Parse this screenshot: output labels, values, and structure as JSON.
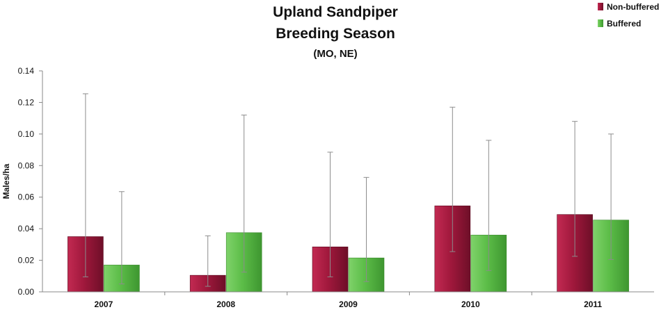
{
  "chart_data": {
    "type": "bar",
    "title_lines": [
      "Upland Sandpiper",
      "Breeding Season",
      "(MO, NE)"
    ],
    "xlabel": "",
    "ylabel": "Males/ha",
    "categories": [
      "2007",
      "2008",
      "2009",
      "2010",
      "2011"
    ],
    "ylim": [
      0,
      0.14
    ],
    "yticks": [
      "0.00",
      "0.02",
      "0.04",
      "0.06",
      "0.08",
      "0.10",
      "0.12",
      "0.14"
    ],
    "legend_position": "top-right",
    "grid": false,
    "error_bars": true,
    "series": [
      {
        "name": "Non-buffered",
        "color": "#a0183c",
        "values": [
          0.035,
          0.0105,
          0.0285,
          0.0545,
          0.049
        ],
        "err_low": [
          0.0095,
          0.0035,
          0.0095,
          0.0255,
          0.0225
        ],
        "err_high": [
          0.1255,
          0.0355,
          0.0885,
          0.117,
          0.108
        ]
      },
      {
        "name": "Buffered",
        "color": "#5cbd48",
        "values": [
          0.017,
          0.0375,
          0.0215,
          0.036,
          0.0455
        ],
        "err_low": [
          0.005,
          0.0125,
          0.0065,
          0.0135,
          0.0205
        ],
        "err_high": [
          0.0635,
          0.112,
          0.0725,
          0.096,
          0.1
        ]
      }
    ]
  }
}
